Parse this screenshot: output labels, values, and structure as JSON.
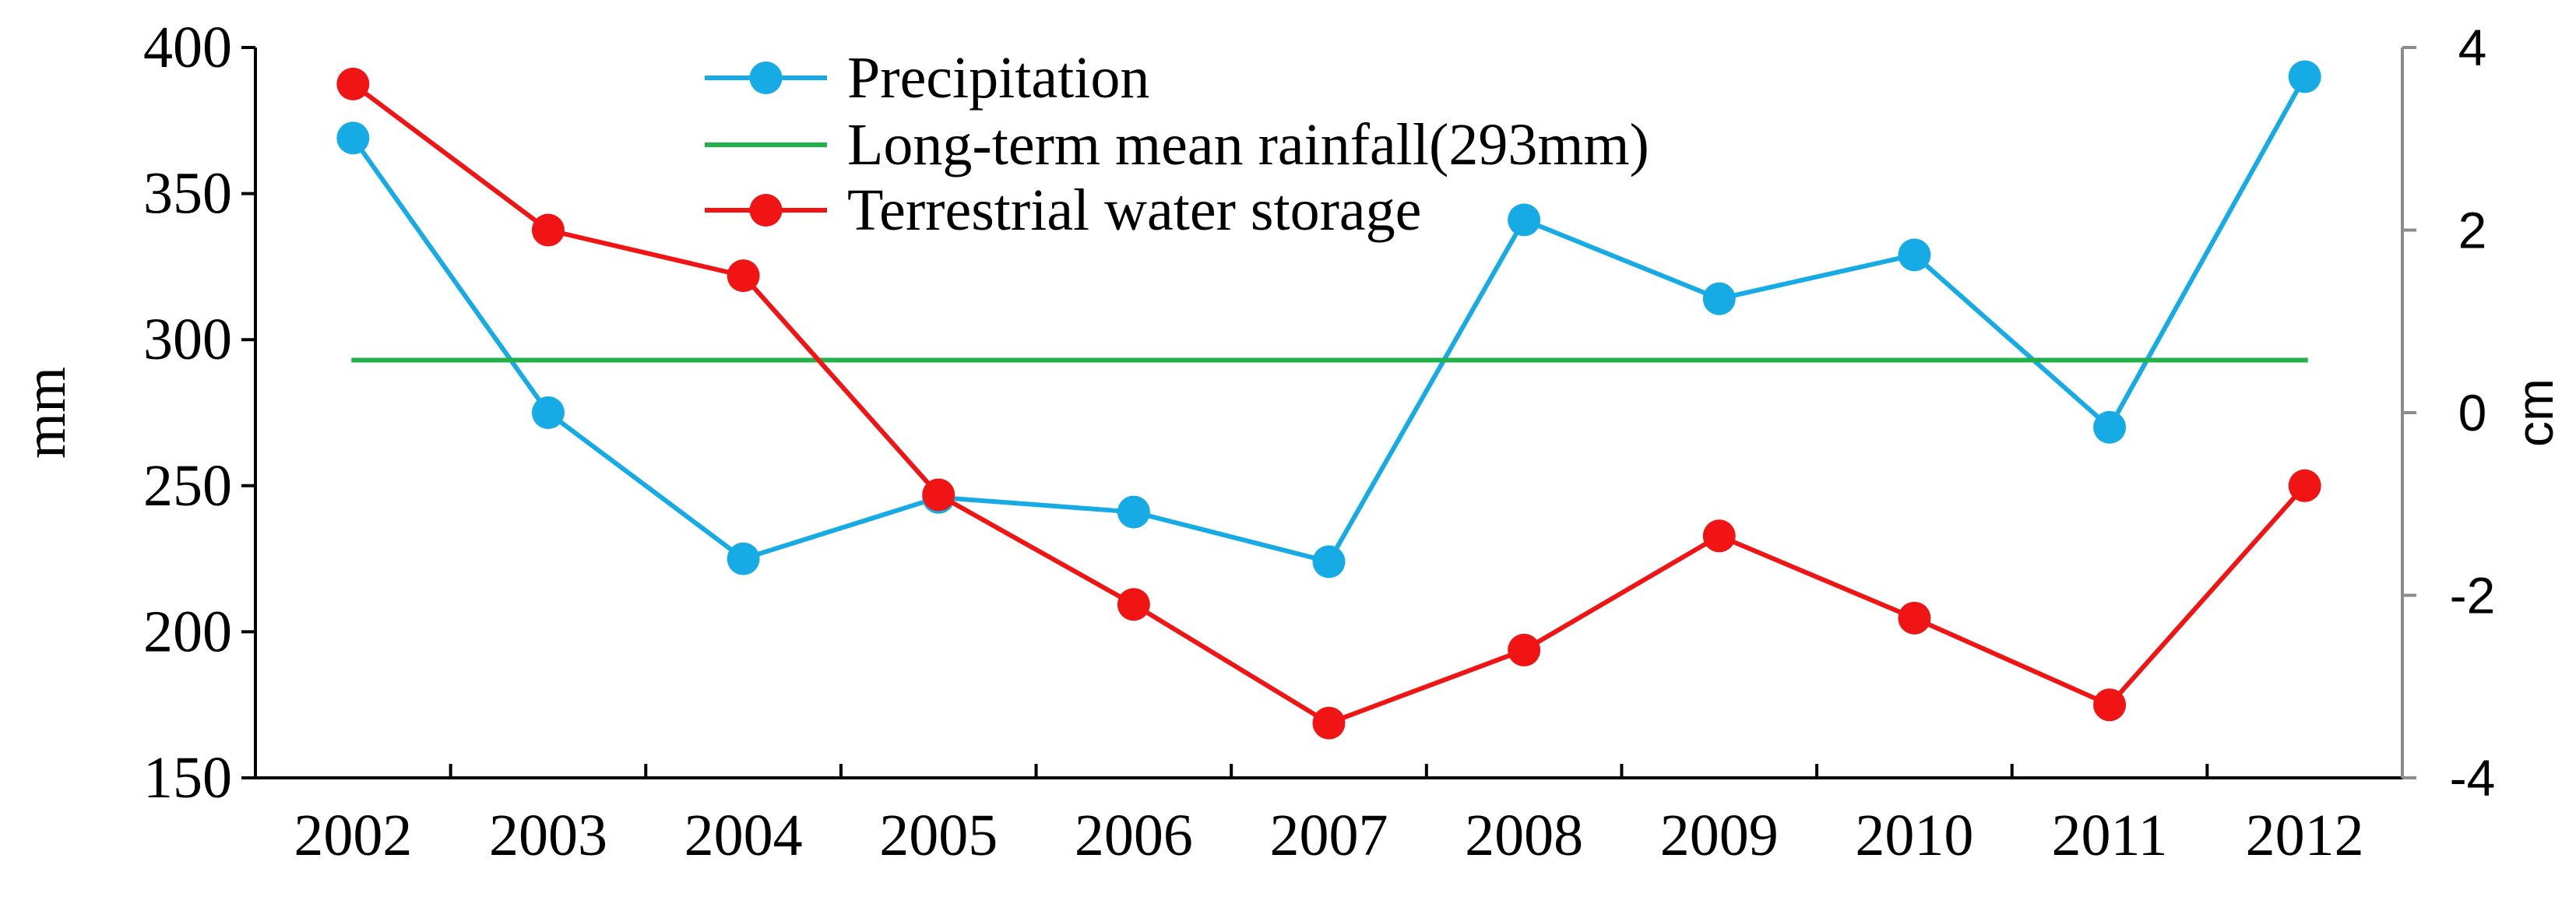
{
  "chart_data": {
    "type": "line",
    "categories": [
      "2002",
      "2003",
      "2004",
      "2005",
      "2006",
      "2007",
      "2008",
      "2009",
      "2010",
      "2011",
      "2012"
    ],
    "series": [
      {
        "name": "Precipitation",
        "axis": "left",
        "color": "#17abe6",
        "marker": "circle",
        "values": [
          369,
          275,
          225,
          246,
          241,
          224,
          341,
          314,
          329,
          270,
          390
        ]
      },
      {
        "name": "Long-term mean rainfall(293mm)",
        "axis": "left",
        "color": "#22b04a",
        "marker": "none",
        "values": [
          293,
          293,
          293,
          293,
          293,
          293,
          293,
          293,
          293,
          293,
          293
        ]
      },
      {
        "name": "Terrestrial water storage",
        "axis": "right",
        "color": "#f01414",
        "marker": "circle",
        "values": [
          3.6,
          2.0,
          1.5,
          -0.9,
          -2.1,
          -3.4,
          -2.6,
          -1.35,
          -2.25,
          -3.2,
          -0.8
        ]
      }
    ],
    "y_left": {
      "label": "mm",
      "lim": [
        150,
        400
      ],
      "ticks": [
        "150",
        "200",
        "250",
        "300",
        "350",
        "400"
      ]
    },
    "y_right": {
      "label": "cm",
      "lim": [
        -4,
        4
      ],
      "ticks": [
        "-4",
        "-2",
        "0",
        "2",
        "4"
      ]
    },
    "xlabel": "",
    "title": "",
    "grid": false,
    "legend_position": "top-center"
  }
}
